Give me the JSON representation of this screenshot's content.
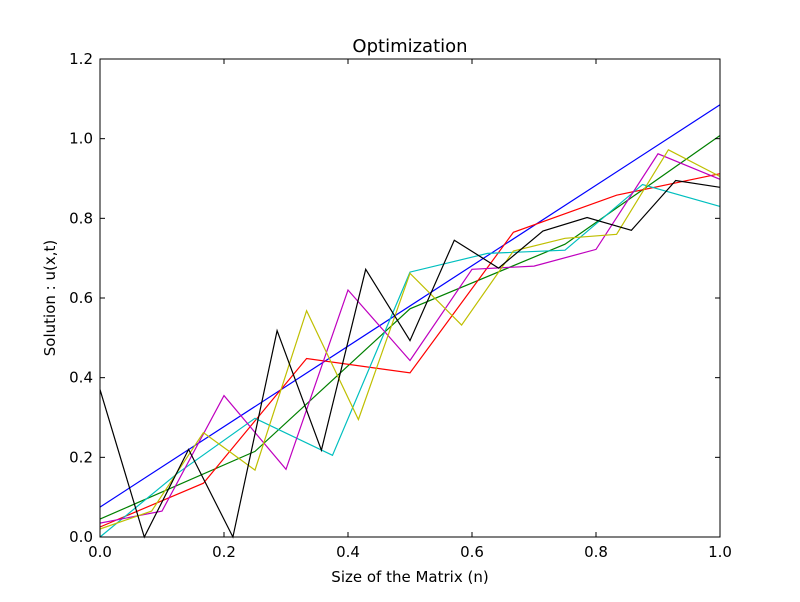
{
  "chart_data": {
    "type": "line",
    "title": "Optimization",
    "xlabel": "Size of the Matrix (n)",
    "ylabel": "Solution : u(x,t)",
    "xlim": [
      0.0,
      1.0
    ],
    "ylim": [
      0.0,
      1.2
    ],
    "xticks": [
      "0.0",
      "0.2",
      "0.4",
      "0.6",
      "0.8",
      "1.0"
    ],
    "yticks": [
      "0.0",
      "0.2",
      "0.4",
      "0.6",
      "0.8",
      "1.0",
      "1.2"
    ],
    "xtick_values": [
      0.0,
      0.2,
      0.4,
      0.6,
      0.8,
      1.0
    ],
    "ytick_values": [
      0.0,
      0.2,
      0.4,
      0.6,
      0.8,
      1.0,
      1.2
    ],
    "grid": false,
    "legend": "none",
    "series": [
      {
        "color": "#0000ff",
        "x": [
          0.0,
          1.0
        ],
        "y": [
          0.075,
          1.085
        ]
      },
      {
        "color": "#008000",
        "x": [
          0.0,
          0.25,
          0.5,
          0.75,
          1.0
        ],
        "y": [
          0.045,
          0.215,
          0.573,
          0.735,
          1.008
        ]
      },
      {
        "color": "#ff0000",
        "x": [
          0.0,
          0.1667,
          0.3333,
          0.5,
          0.6667,
          0.8333,
          1.0
        ],
        "y": [
          0.025,
          0.135,
          0.448,
          0.412,
          0.765,
          0.858,
          0.912
        ]
      },
      {
        "color": "#00bfbf",
        "x": [
          0.0,
          0.125,
          0.25,
          0.375,
          0.5,
          0.625,
          0.75,
          0.875,
          1.0
        ],
        "y": [
          0.0,
          0.16,
          0.298,
          0.205,
          0.665,
          0.712,
          0.72,
          0.885,
          0.83
        ]
      },
      {
        "color": "#bf00bf",
        "x": [
          0.0,
          0.1,
          0.2,
          0.3,
          0.4,
          0.5,
          0.6,
          0.7,
          0.8,
          0.9,
          1.0
        ],
        "y": [
          0.035,
          0.065,
          0.355,
          0.17,
          0.62,
          0.443,
          0.672,
          0.68,
          0.722,
          0.962,
          0.898
        ]
      },
      {
        "color": "#bfbf00",
        "x": [
          0.0,
          0.0833,
          0.1667,
          0.25,
          0.3333,
          0.4167,
          0.5,
          0.5833,
          0.6667,
          0.75,
          0.8333,
          0.9167,
          1.0
        ],
        "y": [
          0.02,
          0.065,
          0.262,
          0.168,
          0.568,
          0.295,
          0.662,
          0.532,
          0.718,
          0.75,
          0.76,
          0.972,
          0.905
        ]
      },
      {
        "color": "#000000",
        "x": [
          0.0,
          0.0714,
          0.1429,
          0.2143,
          0.2857,
          0.3571,
          0.4286,
          0.5,
          0.5714,
          0.6429,
          0.7143,
          0.7857,
          0.8571,
          0.9286,
          1.0
        ],
        "y": [
          0.37,
          0.0,
          0.22,
          0.0,
          0.518,
          0.218,
          0.672,
          0.493,
          0.745,
          0.675,
          0.768,
          0.802,
          0.77,
          0.895,
          0.878
        ]
      }
    ]
  }
}
